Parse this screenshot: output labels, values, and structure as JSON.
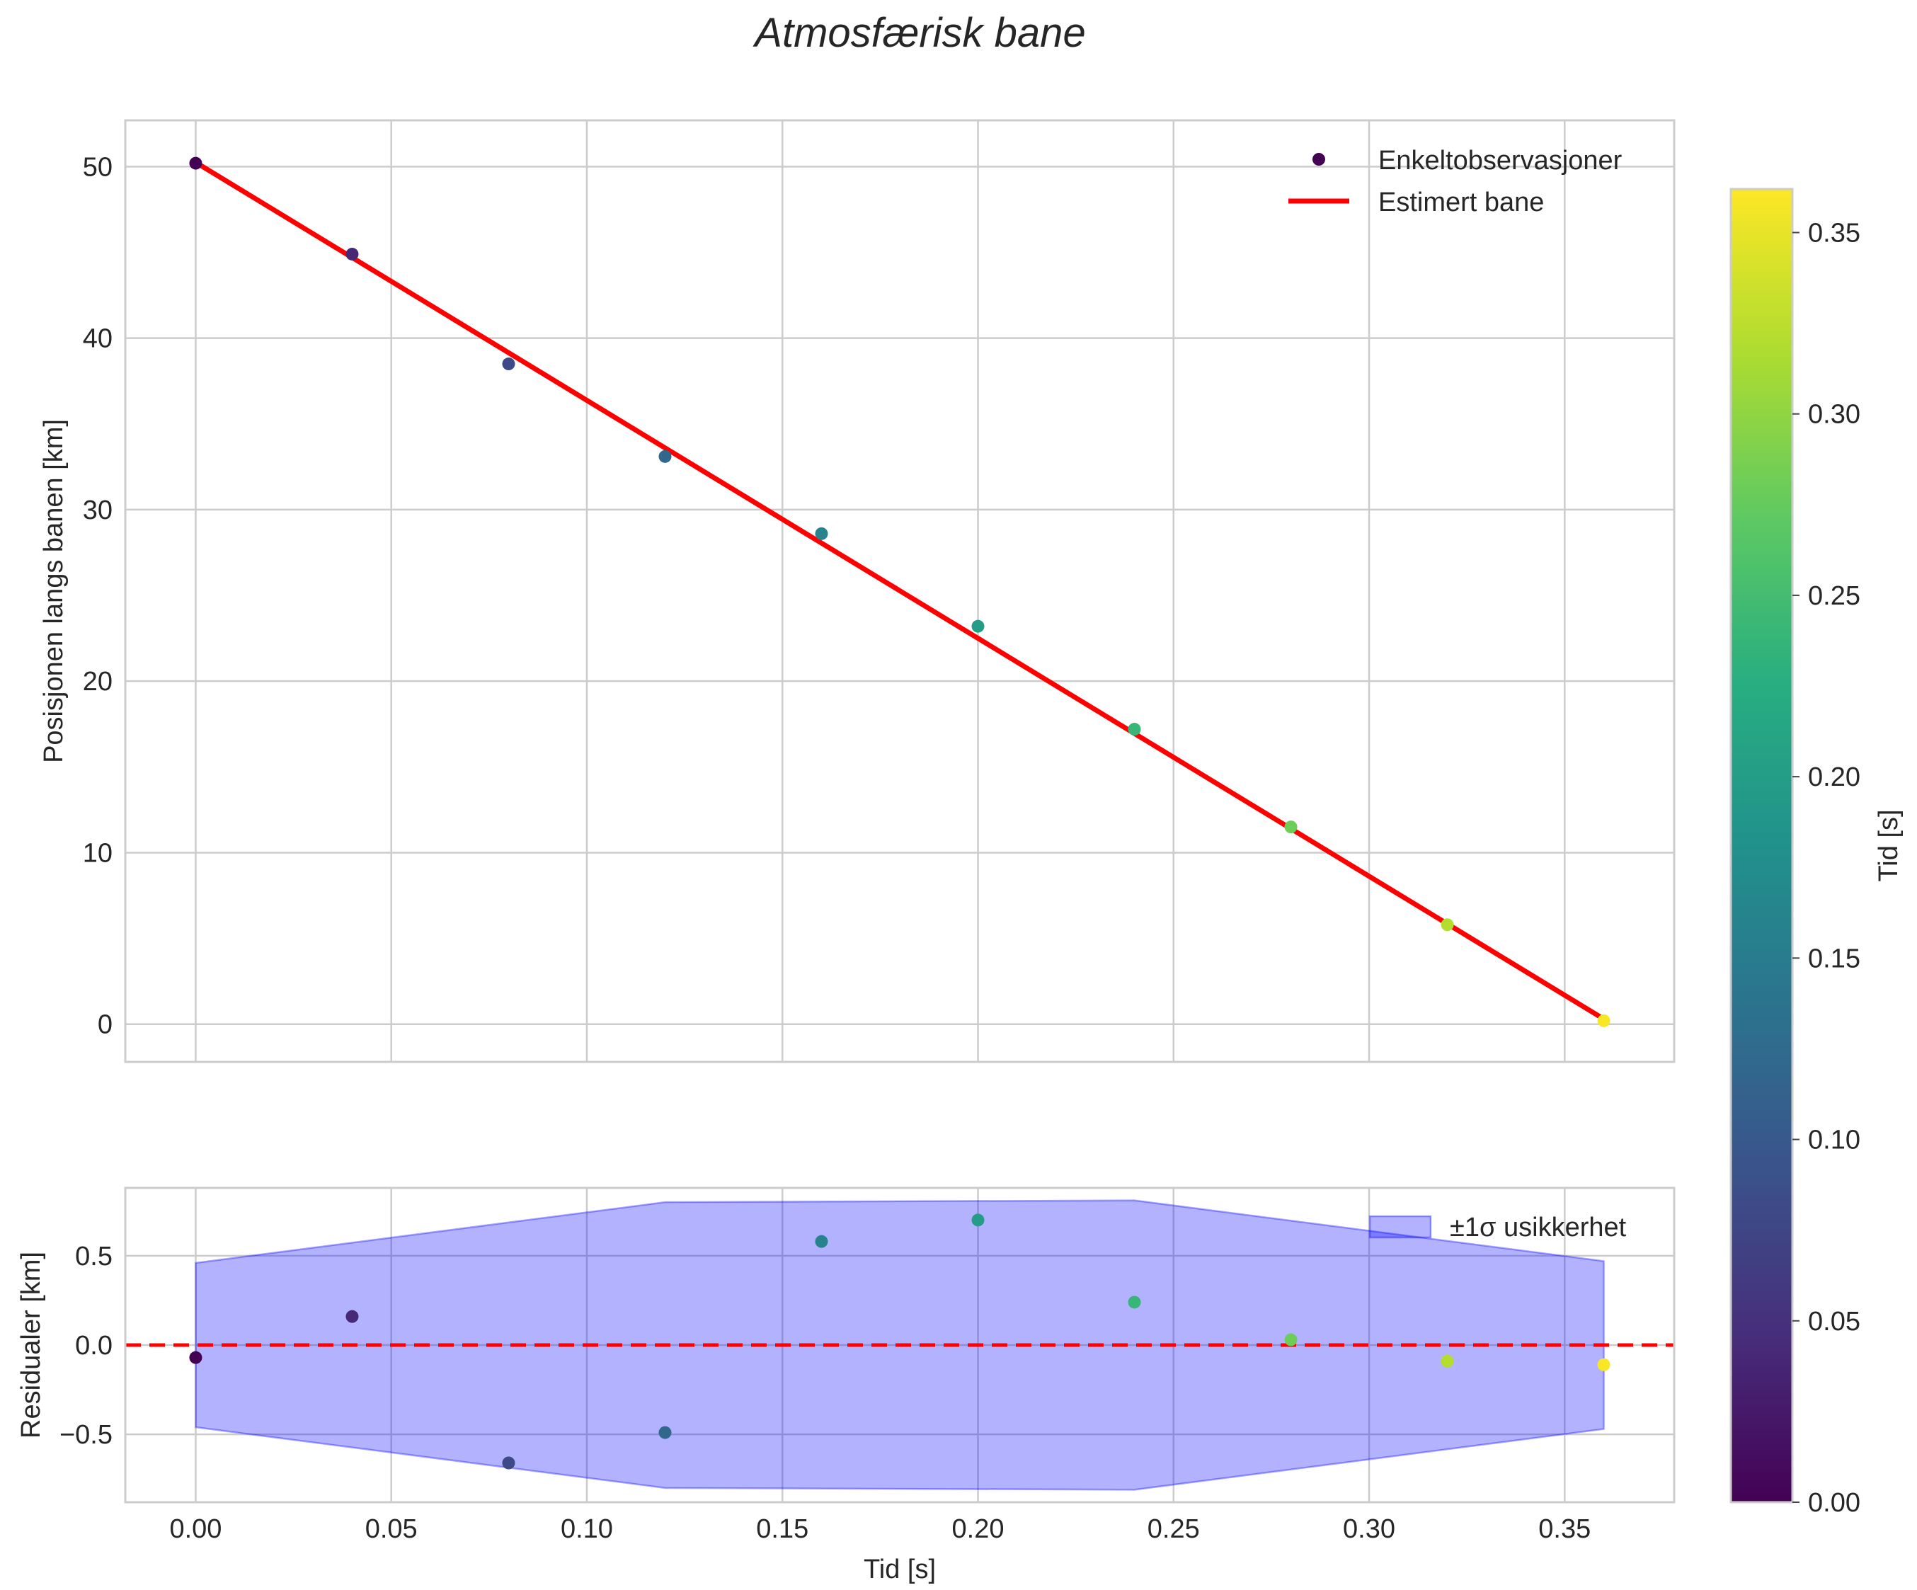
{
  "chart_data": {
    "title": "Atmosfærisk bane",
    "top": {
      "type": "scatter+line",
      "ylabel": "Posisjonen langs banen [km]",
      "xlim": [
        -0.018,
        0.378
      ],
      "ylim": [
        -2.2,
        52.7
      ],
      "yticks": [
        0,
        10,
        20,
        30,
        40,
        50
      ],
      "ytick_labels": [
        "0",
        "10",
        "20",
        "30",
        "40",
        "50"
      ],
      "series": [
        {
          "name": "Enkeltobservasjoner",
          "kind": "scatter",
          "x": [
            0.0,
            0.04,
            0.08,
            0.12,
            0.16,
            0.2,
            0.24,
            0.28,
            0.32,
            0.36
          ],
          "y": [
            50.2,
            44.9,
            38.5,
            33.1,
            28.6,
            23.2,
            17.2,
            11.5,
            5.8,
            0.2
          ]
        },
        {
          "name": "Estimert bane",
          "kind": "line",
          "color": "#ff0000",
          "x": [
            0.0,
            0.36
          ],
          "y": [
            50.25,
            0.3
          ]
        }
      ],
      "legend": [
        "Enkeltobservasjoner",
        "Estimert bane"
      ]
    },
    "bottom": {
      "type": "scatter+area",
      "xlabel": "Tid [s]",
      "ylabel": "Residualer [km]",
      "xlim": [
        -0.018,
        0.378
      ],
      "ylim": [
        -0.88,
        0.88
      ],
      "xticks": [
        0.0,
        0.05,
        0.1,
        0.15,
        0.2,
        0.25,
        0.3,
        0.35
      ],
      "xtick_labels": [
        "0.00",
        "0.05",
        "0.10",
        "0.15",
        "0.20",
        "0.25",
        "0.30",
        "0.35"
      ],
      "yticks": [
        -0.5,
        0.0,
        0.5
      ],
      "ytick_labels": [
        "−0.5",
        "0.0",
        "0.5"
      ],
      "residuals": {
        "x": [
          0.0,
          0.04,
          0.08,
          0.12,
          0.16,
          0.2,
          0.24,
          0.28,
          0.32,
          0.36
        ],
        "y": [
          -0.07,
          0.16,
          -0.66,
          -0.49,
          0.58,
          0.7,
          0.24,
          0.03,
          -0.09,
          -0.11
        ]
      },
      "band": {
        "name": "±1σ usikkerhet",
        "color": "#0000ff",
        "x": [
          0.0,
          0.12,
          0.24,
          0.36
        ],
        "upper": [
          0.46,
          0.8,
          0.81,
          0.47
        ],
        "lower": [
          -0.46,
          -0.8,
          -0.81,
          -0.47
        ]
      },
      "zero_line": {
        "y": 0.0,
        "color": "#ff0000",
        "style": "dashed"
      },
      "legend": [
        "±1σ usikkerhet"
      ]
    },
    "colorbar": {
      "label": "Tid [s]",
      "colormap": "viridis",
      "range": [
        0.0,
        0.362
      ],
      "ticks": [
        0.0,
        0.05,
        0.1,
        0.15,
        0.2,
        0.25,
        0.3,
        0.35
      ],
      "tick_labels": [
        "0.00",
        "0.05",
        "0.10",
        "0.15",
        "0.20",
        "0.25",
        "0.30",
        "0.35"
      ]
    }
  },
  "colors": {
    "grid": "#cccccc",
    "spine": "#cccccc",
    "text": "#262626",
    "fit_line": "#ff0000",
    "band": "#0000ff"
  }
}
